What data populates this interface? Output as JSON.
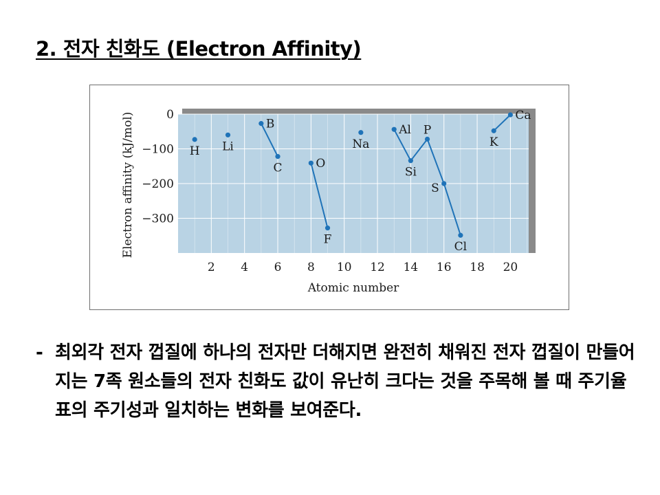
{
  "slide": {
    "title": "2. 전자 친화도 (Electron Affinity)",
    "bullet_marker": "-",
    "bullet_text": "최외각 전자 껍질에 하나의 전자만 더해지면 완전히 채워진 전자 껍질이 만들어지는 7족 원소들의 전자 친화도 값이 유난히 크다는 것을 주목해 볼 때 주기율표의 주기성과 일치하는 변화를 보여준다."
  },
  "chart_data": {
    "type": "line",
    "title": "",
    "xlabel": "Atomic number",
    "ylabel": "Electron affinity (kJ/mol)",
    "xlim": [
      0,
      21.1
    ],
    "ylim": [
      -400,
      0
    ],
    "xticks": [
      2,
      4,
      6,
      8,
      10,
      12,
      14,
      16,
      18,
      20
    ],
    "yticks": [
      0,
      -100,
      -200,
      -300
    ],
    "ytick_labels": [
      "0",
      "−100",
      "−200",
      "−300"
    ],
    "grid": true,
    "colors": {
      "plot_bg": "#b9d3e4",
      "grid": "#ffffff",
      "line": "#1f73b8",
      "point": "#1f73b8",
      "shadow": "#8a8a8a"
    },
    "points": [
      {
        "label": "H",
        "x": 1,
        "y": -73,
        "label_pos": "below"
      },
      {
        "label": "Li",
        "x": 3,
        "y": -60,
        "label_pos": "below"
      },
      {
        "label": "B",
        "x": 5,
        "y": -27,
        "label_pos": "right"
      },
      {
        "label": "C",
        "x": 6,
        "y": -122,
        "label_pos": "below"
      },
      {
        "label": "O",
        "x": 8,
        "y": -141,
        "label_pos": "right"
      },
      {
        "label": "F",
        "x": 9,
        "y": -328,
        "label_pos": "below"
      },
      {
        "label": "Na",
        "x": 11,
        "y": -53,
        "label_pos": "below"
      },
      {
        "label": "Al",
        "x": 13,
        "y": -44,
        "label_pos": "right"
      },
      {
        "label": "Si",
        "x": 14,
        "y": -134,
        "label_pos": "below"
      },
      {
        "label": "P",
        "x": 15,
        "y": -72,
        "label_pos": "above"
      },
      {
        "label": "S",
        "x": 16,
        "y": -200,
        "label_pos": "left"
      },
      {
        "label": "Cl",
        "x": 17,
        "y": -349,
        "label_pos": "below"
      },
      {
        "label": "K",
        "x": 19,
        "y": -48,
        "label_pos": "below"
      },
      {
        "label": "Ca",
        "x": 20,
        "y": -2,
        "label_pos": "right"
      }
    ],
    "connected_groups": [
      [
        "B",
        "C"
      ],
      [
        "O",
        "F"
      ],
      [
        "Al",
        "Si",
        "P",
        "S",
        "Cl"
      ],
      [
        "K",
        "Ca"
      ]
    ]
  }
}
